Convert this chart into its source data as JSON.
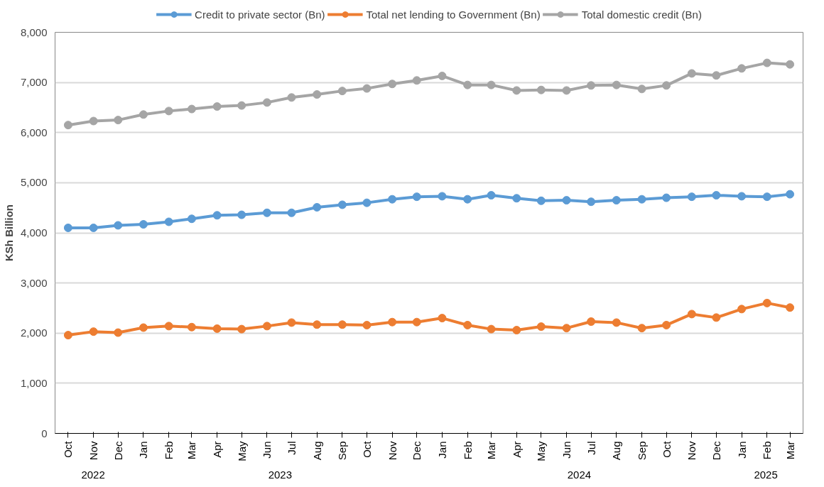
{
  "chart_data": {
    "type": "line",
    "ylabel": "KSh Billion",
    "x": [
      "2022-10",
      "2022-11",
      "2022-12",
      "2023-01",
      "2023-02",
      "2023-03",
      "2023-04",
      "2023-05",
      "2023-06",
      "2023-07",
      "2023-08",
      "2023-09",
      "2023-10",
      "2023-11",
      "2023-12",
      "2024-01",
      "2024-02",
      "2024-03",
      "2024-04",
      "2024-05",
      "2024-06",
      "2024-07",
      "2024-08",
      "2024-09",
      "2024-10",
      "2024-11",
      "2024-12",
      "2025-01",
      "2025-02",
      "2025-03"
    ],
    "series": [
      {
        "name": "Credit to private sector (Bn)",
        "color": "#5b9bd5",
        "values": [
          4100,
          4100,
          4150,
          4170,
          4220,
          4280,
          4350,
          4360,
          4400,
          4400,
          4510,
          4560,
          4600,
          4670,
          4720,
          4730,
          4670,
          4750,
          4690,
          4640,
          4650,
          4620,
          4650,
          4670,
          4700,
          4720,
          4750,
          4730,
          4720,
          4770
        ]
      },
      {
        "name": "Total net lending to Government (Bn)",
        "color": "#ed7d31",
        "values": [
          1960,
          2030,
          2010,
          2110,
          2140,
          2120,
          2090,
          2080,
          2140,
          2210,
          2170,
          2170,
          2160,
          2220,
          2220,
          2300,
          2160,
          2080,
          2060,
          2130,
          2100,
          2230,
          2210,
          2100,
          2160,
          2380,
          2310,
          2480,
          2600,
          2510
        ]
      },
      {
        "name": "Total domestic credit (Bn)",
        "color": "#a5a5a5",
        "values": [
          6150,
          6230,
          6250,
          6360,
          6430,
          6470,
          6520,
          6540,
          6600,
          6700,
          6760,
          6830,
          6880,
          6970,
          7040,
          7130,
          6950,
          6950,
          6840,
          6850,
          6840,
          6940,
          6950,
          6870,
          6940,
          7180,
          7140,
          7280,
          7390,
          7360
        ]
      }
    ],
    "xlim": [
      "2022-09-15",
      "2025-03-17"
    ],
    "ylim": [
      0,
      8000
    ],
    "yticks": [
      {
        "value": 0,
        "label": "0"
      },
      {
        "value": 1000,
        "label": "1,000"
      },
      {
        "value": 2000,
        "label": "2,000"
      },
      {
        "value": 3000,
        "label": "3,000"
      },
      {
        "value": 4000,
        "label": "4,000"
      },
      {
        "value": 5000,
        "label": "5,000"
      },
      {
        "value": 6000,
        "label": "6,000"
      },
      {
        "value": 7000,
        "label": "7,000"
      },
      {
        "value": 8000,
        "label": "8,000"
      }
    ],
    "xticks": [
      {
        "value": "2022-10",
        "label": "Oct"
      },
      {
        "value": "2022-11",
        "label": "Nov"
      },
      {
        "value": "2022-12",
        "label": "Dec"
      },
      {
        "value": "2023-01",
        "label": "Jan"
      },
      {
        "value": "2023-02",
        "label": "Feb"
      },
      {
        "value": "2023-03",
        "label": "Mar"
      },
      {
        "value": "2023-04",
        "label": "Apr"
      },
      {
        "value": "2023-05",
        "label": "May"
      },
      {
        "value": "2023-06",
        "label": "Jun"
      },
      {
        "value": "2023-07",
        "label": "Jul"
      },
      {
        "value": "2023-08",
        "label": "Aug"
      },
      {
        "value": "2023-09",
        "label": "Sep"
      },
      {
        "value": "2023-10",
        "label": "Oct"
      },
      {
        "value": "2023-11",
        "label": "Nov"
      },
      {
        "value": "2023-12",
        "label": "Dec"
      },
      {
        "value": "2024-01",
        "label": "Jan"
      },
      {
        "value": "2024-02",
        "label": "Feb"
      },
      {
        "value": "2024-03",
        "label": "Mar"
      },
      {
        "value": "2024-04",
        "label": "Apr"
      },
      {
        "value": "2024-05",
        "label": "May"
      },
      {
        "value": "2024-06",
        "label": "Jun"
      },
      {
        "value": "2024-07",
        "label": "Jul"
      },
      {
        "value": "2024-08",
        "label": "Aug"
      },
      {
        "value": "2024-09",
        "label": "Sep"
      },
      {
        "value": "2024-10",
        "label": "Oct"
      },
      {
        "value": "2024-11",
        "label": "Nov"
      },
      {
        "value": "2024-12",
        "label": "Dec"
      },
      {
        "value": "2025-01",
        "label": "Jan"
      },
      {
        "value": "2025-02",
        "label": "Feb"
      },
      {
        "value": "2025-03",
        "label": "Mar"
      }
    ],
    "annotations": [
      "2022",
      "2023",
      "2024",
      "2025"
    ],
    "grid": "y",
    "legend": "top",
    "marker": "circle",
    "line_style": "solid"
  }
}
